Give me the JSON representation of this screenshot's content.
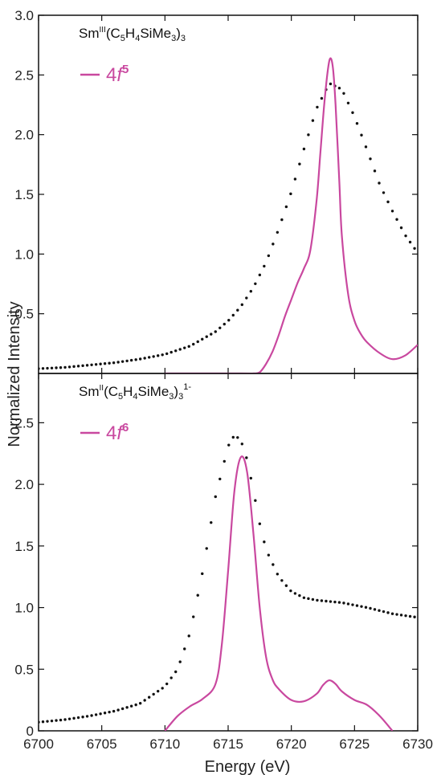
{
  "colors": {
    "calc": "#c9489f",
    "exp": "#111111",
    "frame": "#111111"
  },
  "chart_data": [
    {
      "type": "line",
      "panel": "top",
      "annotation": {
        "base": "Sm",
        "ox": "III",
        "formula": "(C5H4SiMe3)3",
        "charge": ""
      },
      "legend": {
        "entries": [
          {
            "prefix": "4",
            "italic": "f",
            "sup": "5"
          }
        ],
        "placement": "top-left"
      },
      "xlim": [
        6700,
        6730
      ],
      "ylim": [
        0,
        3.0
      ],
      "yticks": [
        0.5,
        1.0,
        1.5,
        2.0,
        2.5,
        3.0
      ],
      "ytick_labels": [
        "0.5",
        "1.0",
        "1.5",
        "2.0",
        "2.5",
        "3.0"
      ],
      "series": [
        {
          "style": "dotted",
          "x": [
            6700,
            6702,
            6704,
            6706,
            6708,
            6710,
            6712,
            6714,
            6715,
            6716,
            6717,
            6718,
            6719,
            6720,
            6721,
            6722,
            6723,
            6724,
            6725,
            6726,
            6727,
            6728,
            6729,
            6730
          ],
          "y": [
            0.04,
            0.05,
            0.07,
            0.09,
            0.12,
            0.16,
            0.23,
            0.35,
            0.44,
            0.56,
            0.72,
            0.93,
            1.21,
            1.52,
            1.88,
            2.22,
            2.43,
            2.38,
            2.15,
            1.87,
            1.58,
            1.36,
            1.16,
            1.01
          ]
        },
        {
          "style": "solid",
          "x": [
            6710,
            6716,
            6717,
            6717.5,
            6718,
            6718.5,
            6719,
            6719.5,
            6720,
            6720.5,
            6721,
            6721.5,
            6722,
            6722.3,
            6722.6,
            6722.9,
            6723.1,
            6723.3,
            6723.5,
            6723.8,
            6724,
            6724.5,
            6725,
            6725.5,
            6726,
            6727,
            6728,
            6729,
            6730
          ],
          "y": [
            0,
            0,
            0,
            0.01,
            0.08,
            0.18,
            0.32,
            0.48,
            0.62,
            0.76,
            0.88,
            1.03,
            1.45,
            1.85,
            2.25,
            2.55,
            2.64,
            2.55,
            2.25,
            1.6,
            1.15,
            0.66,
            0.44,
            0.33,
            0.26,
            0.17,
            0.12,
            0.15,
            0.24
          ]
        }
      ]
    },
    {
      "type": "line",
      "panel": "bottom",
      "annotation": {
        "base": "Sm",
        "ox": "II",
        "formula": "(C5H4SiMe3)3",
        "charge": "1-"
      },
      "legend": {
        "entries": [
          {
            "prefix": "4",
            "italic": "f",
            "sup": "6"
          }
        ],
        "placement": "top-left"
      },
      "xlabel": "Energy (eV)",
      "ylabel": "Normalized Intensity",
      "xlim": [
        6700,
        6730
      ],
      "ylim": [
        0,
        2.9
      ],
      "xticks": [
        6700,
        6705,
        6710,
        6715,
        6720,
        6725,
        6730
      ],
      "xtick_labels": [
        "6700",
        "6705",
        "6710",
        "6715",
        "6720",
        "6725",
        "6730"
      ],
      "yticks": [
        0,
        0.5,
        1.0,
        1.5,
        2.0,
        2.5
      ],
      "ytick_labels": [
        "0",
        "0.5",
        "1.0",
        "1.5",
        "2.0",
        "2.5"
      ],
      "series": [
        {
          "style": "dotted",
          "x": [
            6700,
            6702,
            6704,
            6706,
            6708,
            6710,
            6711,
            6712,
            6713,
            6714,
            6715,
            6715.5,
            6716,
            6716.5,
            6717,
            6717.5,
            6718,
            6719,
            6720,
            6721,
            6722,
            6724,
            6726,
            6728,
            6730
          ],
          "y": [
            0.07,
            0.09,
            0.12,
            0.16,
            0.22,
            0.36,
            0.5,
            0.8,
            1.3,
            1.9,
            2.31,
            2.4,
            2.36,
            2.2,
            1.95,
            1.68,
            1.47,
            1.25,
            1.13,
            1.08,
            1.06,
            1.04,
            1.0,
            0.95,
            0.92
          ]
        },
        {
          "style": "solid",
          "x": [
            6710,
            6711,
            6712,
            6713,
            6714,
            6714.5,
            6715,
            6715.5,
            6716,
            6716.5,
            6717,
            6717.5,
            6718,
            6718.5,
            6719,
            6720,
            6721,
            6722,
            6722.5,
            6723,
            6723.5,
            6724,
            6725,
            6726,
            6727,
            6728
          ],
          "y": [
            0,
            0.12,
            0.2,
            0.26,
            0.38,
            0.7,
            1.3,
            1.95,
            2.22,
            2.1,
            1.6,
            1.0,
            0.6,
            0.42,
            0.34,
            0.25,
            0.24,
            0.3,
            0.37,
            0.41,
            0.38,
            0.32,
            0.25,
            0.21,
            0.12,
            0.0
          ]
        }
      ]
    }
  ]
}
